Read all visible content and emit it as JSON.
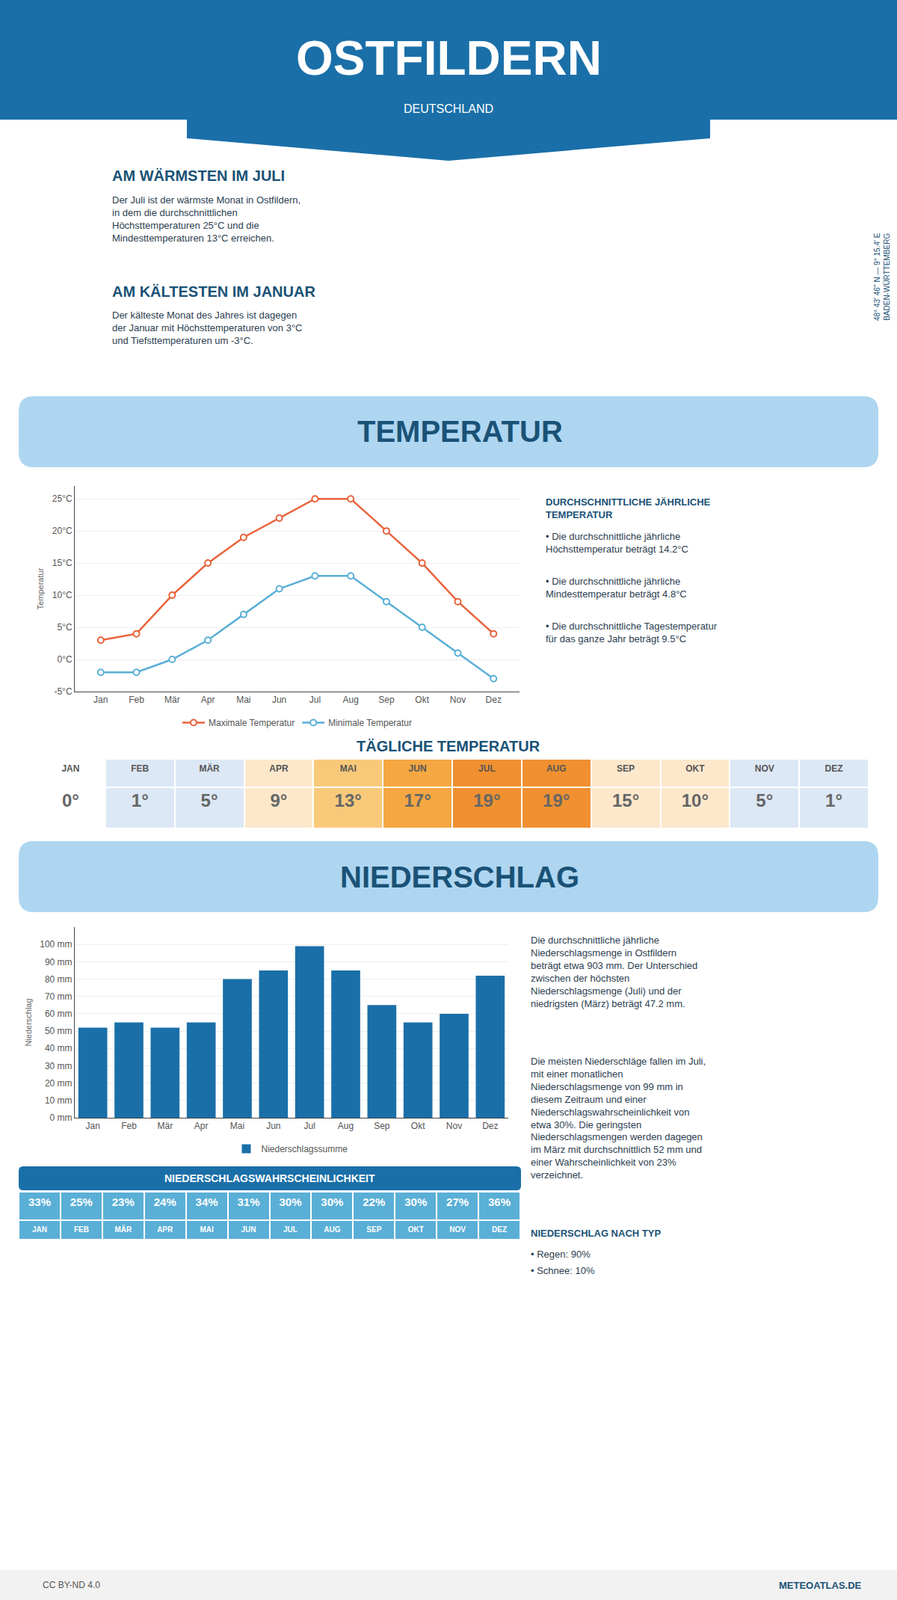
{
  "title": "OSTFILDERN",
  "subtitle": "DEUTSCHLAND",
  "annotations": [
    {
      "title": "AM WÄRMSTEN IM JULI",
      "text": "Der Juli ist der wärmste Monat in Ostfildern,\nin dem die durchschnittlichen\nHöchsttemperaturen 25°C und die\nMindesttemperaturen 13°C erreichen."
    },
    {
      "title": "AM KÄLTESTEN IM JANUAR",
      "text": "Der kälteste Monat des Jahres ist dagegen\nder Januar mit Höchsttemperaturen von 3°C\nund Tiefsttemperaturen um -3°C."
    },
    {
      "text": "48° 43' 46'' N — 9° 15.4' E\nBADEN-WÜRTTEMBERG"
    },
    {
      "text": "CC BY-ND 4.0"
    },
    {
      "text": "METEOATLAS.DE"
    }
  ],
  "chart_data": [
    {
      "type": "line",
      "title": "TEMPERATUR",
      "categories": [
        "Jan",
        "Feb",
        "Mär",
        "Apr",
        "Mai",
        "Jun",
        "Jul",
        "Aug",
        "Sep",
        "Okt",
        "Nov",
        "Dez"
      ],
      "series": [
        {
          "name": "Maximale Temperatur",
          "color": "#e8623a",
          "marker": "circle",
          "line_style": "solid",
          "values": [
            3,
            4,
            10,
            15,
            19,
            22,
            25,
            25,
            20,
            15,
            9,
            4
          ]
        },
        {
          "name": "Minimale Temperatur",
          "color": "#5aafd6",
          "marker": "circle",
          "line_style": "solid",
          "values": [
            -2,
            -2,
            0,
            3,
            7,
            11,
            13,
            13,
            9,
            5,
            1,
            -3
          ]
        }
      ],
      "ylabel": "Temperatur",
      "ylim": [
        -5,
        27
      ],
      "yticks": [
        {
          "value": -5,
          "label": "-5°C"
        },
        {
          "value": 0,
          "label": "0°C"
        },
        {
          "value": 5,
          "label": "5°C"
        },
        {
          "value": 10,
          "label": "10°C"
        },
        {
          "value": 15,
          "label": "15°C"
        },
        {
          "value": 20,
          "label": "20°C"
        },
        {
          "value": 25,
          "label": "25°C"
        }
      ],
      "grid": true,
      "legend": "bottom",
      "annotations": [
        {
          "title": "DURCHSCHNITTLICHE JÄHRLICHE\nTEMPERATUR",
          "bullets": [
            "• Die durchschnittliche jährliche\nHöchsttemperatur beträgt 14.2°C",
            "• Die durchschnittliche jährliche\nMindesttemperatur beträgt 4.8°C",
            "• Die durchschnittliche Tagestemperatur\nfür das ganze Jahr beträgt 9.5°C"
          ]
        }
      ]
    },
    {
      "type": "table",
      "title": "TÄGLICHE TEMPERATUR",
      "categories": [
        "JAN",
        "FEB",
        "MÄR",
        "APR",
        "MAI",
        "JUN",
        "JUL",
        "AUG",
        "SEP",
        "OKT",
        "NOV",
        "DEZ"
      ],
      "values": [
        0,
        1,
        5,
        9,
        13,
        17,
        19,
        19,
        15,
        10,
        5,
        1
      ],
      "value_labels": [
        "0°",
        "1°",
        "5°",
        "9°",
        "13°",
        "17°",
        "19°",
        "19°",
        "15°",
        "10°",
        "5°",
        "1°"
      ],
      "colors": [
        "#ffffff",
        "#dce8f5",
        "#dce8f5",
        "#fde8cc",
        "#f9c97a",
        "#f5a742",
        "#f09030",
        "#f09030",
        "#fde8cc",
        "#fde8cc",
        "#dce8f5",
        "#dce8f5"
      ]
    },
    {
      "type": "bar",
      "title": "NIEDERSCHLAG",
      "categories": [
        "Jan",
        "Feb",
        "Mär",
        "Apr",
        "Mai",
        "Jun",
        "Jul",
        "Aug",
        "Sep",
        "Okt",
        "Nov",
        "Dez"
      ],
      "series": [
        {
          "name": "Niederschlagssumme",
          "color": "#1a6fa8",
          "values": [
            52,
            55,
            52,
            55,
            80,
            85,
            99,
            85,
            65,
            55,
            60,
            82
          ]
        }
      ],
      "ylabel": "Niederschlag",
      "ylim": [
        0,
        110
      ],
      "yticks": [
        {
          "value": 0,
          "label": "0 mm"
        },
        {
          "value": 10,
          "label": "10 mm"
        },
        {
          "value": 20,
          "label": "20 mm"
        },
        {
          "value": 30,
          "label": "30 mm"
        },
        {
          "value": 40,
          "label": "40 mm"
        },
        {
          "value": 50,
          "label": "50 mm"
        },
        {
          "value": 60,
          "label": "60 mm"
        },
        {
          "value": 70,
          "label": "70 mm"
        },
        {
          "value": 80,
          "label": "80 mm"
        },
        {
          "value": 90,
          "label": "90 mm"
        },
        {
          "value": 100,
          "label": "100 mm"
        }
      ],
      "grid": true,
      "legend": "bottom",
      "annotations": [
        {
          "text": "Die durchschnittliche jährliche\nNiederschlagsmenge in Ostfildern\nbeträgt etwa 903 mm. Der Unterschied\nzwischen der höchsten\nNiederschlagsmenge (Juli) und der\nniedrigsten (März) beträgt 47.2 mm."
        },
        {
          "text": "Die meisten Niederschläge fallen im Juli,\nmit einer monatlichen\nNiederschlagsmenge von 99 mm in\ndiesem Zeitraum und einer\nNiederschlagswahrscheinlichkeit von\netwa 30%. Die geringsten\nNiederschlagsmengen werden dagegen\nim März mit durchschnittlich 52 mm und\neiner Wahrscheinlichkeit von 23%\nverzeichnet."
        }
      ]
    },
    {
      "type": "table",
      "title": "NIEDERSCHLAGSWAHRSCHEINLICHKEIT",
      "categories": [
        "JAN",
        "FEB",
        "MÄR",
        "APR",
        "MAI",
        "JUN",
        "JUL",
        "AUG",
        "SEP",
        "OKT",
        "NOV",
        "DEZ"
      ],
      "values": [
        33,
        25,
        23,
        24,
        34,
        31,
        30,
        30,
        22,
        30,
        27,
        36
      ],
      "value_labels": [
        "33%",
        "25%",
        "23%",
        "24%",
        "34%",
        "31%",
        "30%",
        "30%",
        "22%",
        "30%",
        "27%",
        "36%"
      ],
      "color": "#5aafd6",
      "annotations": [
        {
          "title": "NIEDERSCHLAG NACH TYP",
          "bullets": [
            "• Regen: 90%",
            "• Schnee: 10%"
          ]
        }
      ]
    }
  ]
}
